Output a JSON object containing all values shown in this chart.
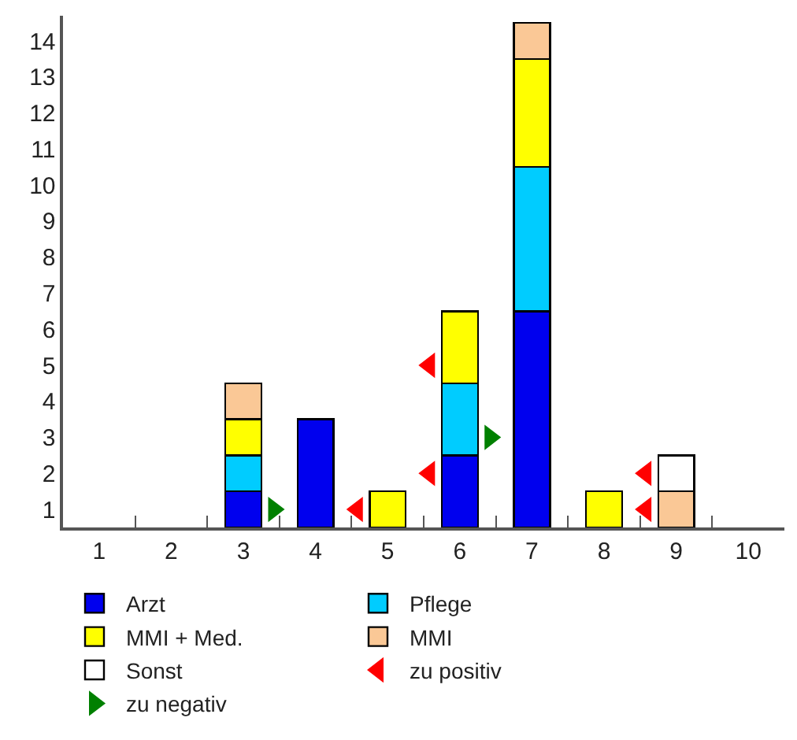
{
  "chart_data": {
    "type": "bar",
    "stacked": true,
    "categories": [
      "1",
      "2",
      "3",
      "4",
      "5",
      "6",
      "7",
      "8",
      "9",
      "10"
    ],
    "series": [
      {
        "name": "Arzt",
        "color": "#0000ee",
        "values": [
          null,
          null,
          1,
          3,
          null,
          2,
          6,
          null,
          null,
          null
        ]
      },
      {
        "name": "Pflege",
        "color": "#00ccff",
        "values": [
          null,
          null,
          1,
          null,
          null,
          2,
          4,
          null,
          null,
          null
        ]
      },
      {
        "name": "MMI + Med.",
        "color": "#ffff00",
        "values": [
          null,
          null,
          1,
          null,
          1,
          2,
          3,
          1,
          null,
          null
        ]
      },
      {
        "name": "MMI",
        "color": "#fac896",
        "values": [
          null,
          null,
          1,
          null,
          null,
          null,
          1,
          null,
          1,
          null
        ]
      },
      {
        "name": "Sonst",
        "color": "#ffffff",
        "values": [
          null,
          null,
          null,
          null,
          null,
          null,
          null,
          null,
          1,
          null
        ]
      },
      {
        "name": "zu positiv",
        "type": "scatter",
        "marker": "triangle",
        "color": "#ff0000",
        "x": [
          "5",
          "6",
          "6",
          "9",
          "9"
        ],
        "values": [
          0.5,
          1.5,
          4.5,
          0.5,
          1.5
        ]
      },
      {
        "name": "zu negativ",
        "type": "scatter",
        "marker": "triangle",
        "color": "#008000",
        "x": [
          "3",
          "6"
        ],
        "values": [
          0.5,
          2.5
        ]
      }
    ],
    "ylim": [
      0,
      14.2
    ],
    "yticks": [
      {
        "value": 0.5,
        "label": "1"
      },
      {
        "value": 1.5,
        "label": "2"
      },
      {
        "value": 2.5,
        "label": "3"
      },
      {
        "value": 3.5,
        "label": "4"
      },
      {
        "value": 4.5,
        "label": "5"
      },
      {
        "value": 5.5,
        "label": "6"
      },
      {
        "value": 6.5,
        "label": "7"
      },
      {
        "value": 7.5,
        "label": "8"
      },
      {
        "value": 8.5,
        "label": "9"
      },
      {
        "value": 9.5,
        "label": "10"
      },
      {
        "value": 10.5,
        "label": "11"
      },
      {
        "value": 11.5,
        "label": "12"
      },
      {
        "value": 12.5,
        "label": "13"
      },
      {
        "value": 13.5,
        "label": "14"
      }
    ],
    "grid": false,
    "legend": "bottom"
  }
}
